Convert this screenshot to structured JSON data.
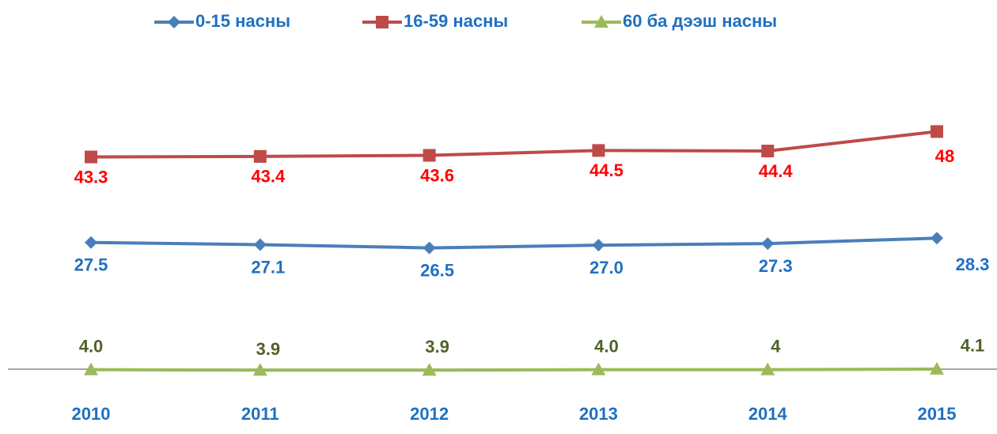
{
  "chart_data": {
    "type": "line",
    "categories": [
      "2010",
      "2011",
      "2012",
      "2013",
      "2014",
      "2015"
    ],
    "ylim": [
      0,
      65
    ],
    "legend": "top",
    "series": [
      {
        "name": "0-15 насны",
        "color": "#4a7ebb",
        "label_color": "#1f70c1",
        "marker": "diamond",
        "values": [
          27.5,
          27.1,
          26.5,
          27.0,
          27.3,
          28.3
        ],
        "value_labels": [
          "27.5",
          "27.1",
          "26.5",
          "27.0",
          "27.3",
          "28.3"
        ]
      },
      {
        "name": "16-59 насны",
        "color": "#be4b48",
        "label_color": "#ff0000",
        "marker": "square",
        "values": [
          43.3,
          43.4,
          43.6,
          44.5,
          44.4,
          48
        ]
      },
      {
        "name": "60 ба дээш насны",
        "color": "#9bbb59",
        "label_color": "#4f6228",
        "marker": "triangle",
        "values": [
          4.0,
          3.9,
          3.9,
          4.0,
          4,
          4.1
        ],
        "value_labels": [
          "4.0",
          "3.9",
          "3.9",
          "4.0",
          "4",
          "4.1"
        ]
      }
    ]
  }
}
